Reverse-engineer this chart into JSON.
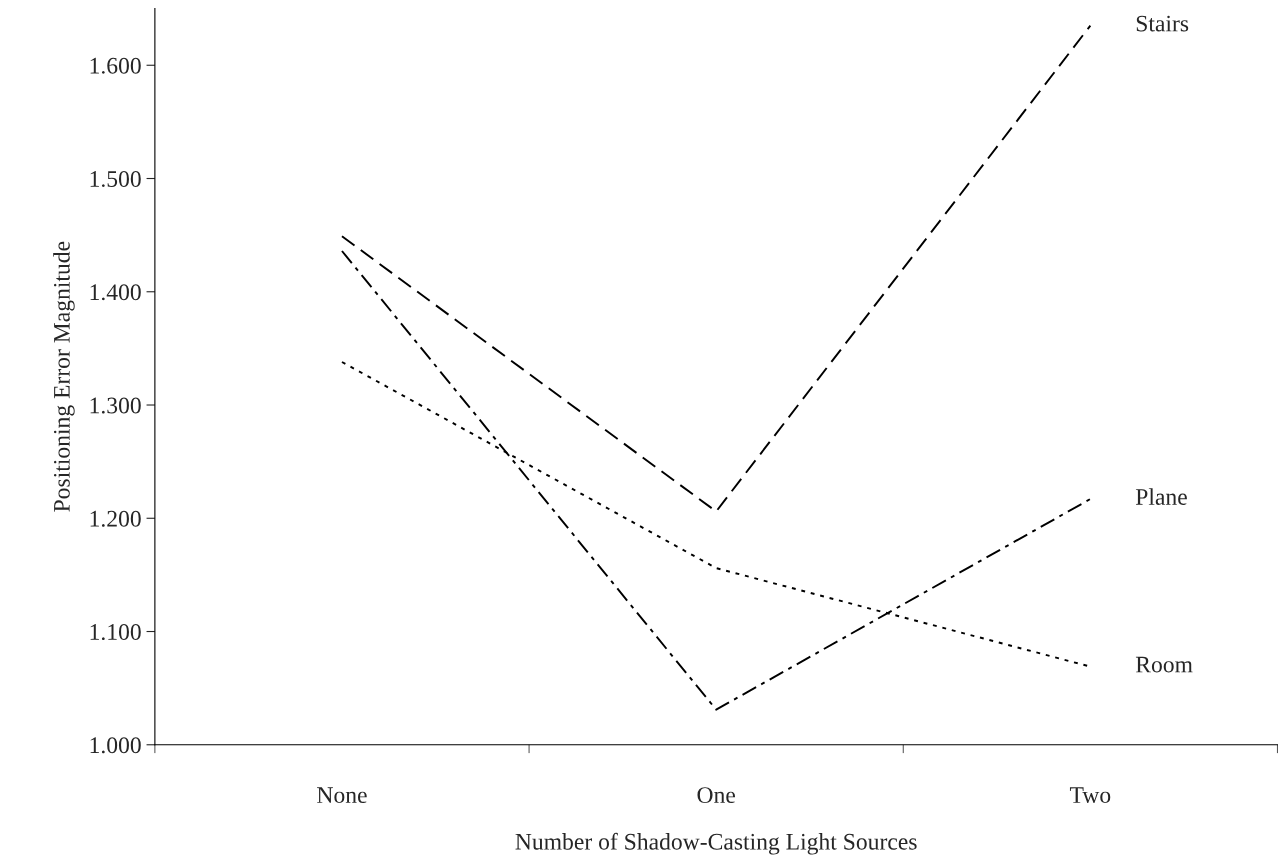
{
  "chart_data": {
    "type": "line",
    "xlabel": "Number of Shadow-Casting Light Sources",
    "ylabel": "Positioning Error Magnitude",
    "categories": [
      "None",
      "One",
      "Two"
    ],
    "series": [
      {
        "name": "Stairs",
        "color": "#000000",
        "line_style": "dashed",
        "values": [
          1.449,
          1.206,
          1.635
        ]
      },
      {
        "name": "Plane",
        "color": "#000000",
        "line_style": "dashdot",
        "values": [
          1.436,
          1.031,
          1.217
        ]
      },
      {
        "name": "Room",
        "color": "#000000",
        "line_style": "dotted",
        "values": [
          1.338,
          1.156,
          1.069
        ]
      }
    ],
    "ylim": [
      1.0,
      1.65
    ],
    "yticks": [
      {
        "value": 1.0,
        "label": "1.000"
      },
      {
        "value": 1.1,
        "label": "1.100"
      },
      {
        "value": 1.2,
        "label": "1.200"
      },
      {
        "value": 1.3,
        "label": "1.300"
      },
      {
        "value": 1.4,
        "label": "1.400"
      },
      {
        "value": 1.5,
        "label": "1.500"
      },
      {
        "value": 1.6,
        "label": "1.600"
      }
    ],
    "grid": false,
    "legend": false,
    "marker": "none"
  }
}
